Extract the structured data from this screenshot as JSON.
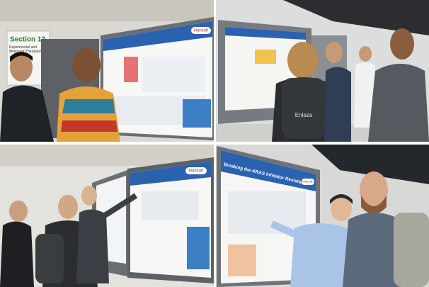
{
  "sign": {
    "title": "Section 12",
    "subtitle": "Experimental and Molecular Therapeutics"
  },
  "posters": [
    {
      "logo": "Hansoh"
    },
    {
      "logo": "Hansoh"
    },
    {
      "logo": "Hansoh"
    }
  ],
  "backpack": "Enlaza",
  "poster_title": "Breaking the KRAS Inhibitor Resistance"
}
